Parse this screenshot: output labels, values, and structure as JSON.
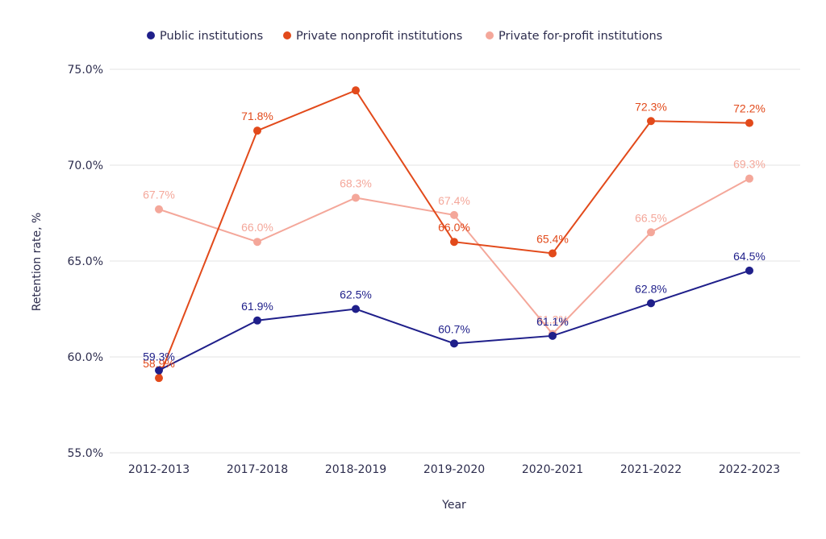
{
  "chart_data": {
    "type": "line",
    "title": "",
    "xlabel": "Year",
    "ylabel": "Retention rate, %",
    "categories": [
      "2012-2013",
      "2017-2018",
      "2018-2019",
      "2019-2020",
      "2020-2021",
      "2021-2022",
      "2022-2023"
    ],
    "ylim": [
      55,
      75
    ],
    "yticks": [
      55,
      60,
      65,
      70,
      75
    ],
    "ytick_labels": [
      "55.0%",
      "60.0%",
      "65.0%",
      "70.0%",
      "75.0%"
    ],
    "grid": true,
    "legend_position": "top-center",
    "series": [
      {
        "name": "Public institutions",
        "color": "#1f1f8a",
        "values": [
          59.3,
          61.9,
          62.5,
          60.7,
          61.1,
          62.8,
          64.5
        ],
        "labels": [
          "59.3%",
          "61.9%",
          "62.5%",
          "60.7%",
          "61.1%",
          "62.8%",
          "64.5%"
        ]
      },
      {
        "name": "Private nonprofit institutions",
        "color": "#e24a1b",
        "values": [
          58.9,
          71.8,
          73.9,
          66.0,
          65.4,
          72.3,
          72.2
        ],
        "labels": [
          "58.9%",
          "71.8%",
          "",
          "66.0%",
          "65.4%",
          "72.3%",
          "72.2%"
        ]
      },
      {
        "name": "Private for-profit institutions",
        "color": "#f4a79a",
        "values": [
          67.7,
          66.0,
          68.3,
          67.4,
          61.2,
          66.5,
          69.3
        ],
        "labels": [
          "67.7%",
          "66.0%",
          "68.3%",
          "67.4%",
          "61.2%",
          "66.5%",
          "69.3%"
        ]
      }
    ]
  }
}
